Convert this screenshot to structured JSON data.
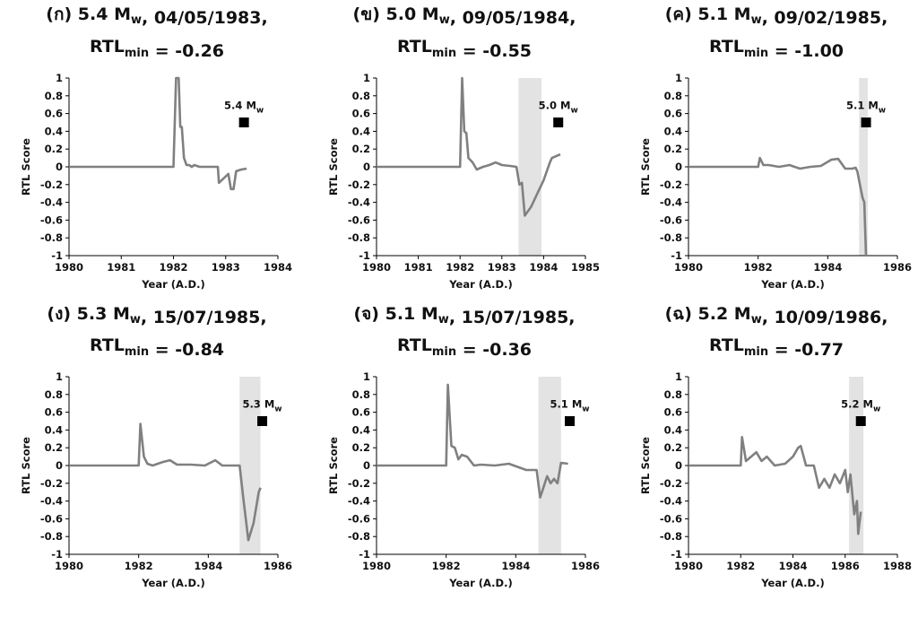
{
  "chart_data": [
    {
      "type": "line",
      "title_line1": "(ก) 5.4 Mw, 04/05/1983,",
      "title_line2": "RTLmin = -0.26",
      "xlabel": "Year (A.D.)",
      "ylabel": "RTL Score",
      "xlim": [
        1980,
        1984
      ],
      "xticks": [
        1980,
        1981,
        1982,
        1983,
        1984
      ],
      "ylim": [
        -1,
        1
      ],
      "yticks": [
        -1,
        -0.8,
        -0.6,
        -0.4,
        -0.2,
        0,
        0.2,
        0.4,
        0.6,
        0.8,
        1
      ],
      "ytick_labels": [
        "-1",
        "-0.8",
        "-0.6",
        "-0.4",
        "-0.2",
        "0",
        "0.2",
        "0.4",
        "0.6",
        "0.8",
        "1"
      ],
      "series": [
        {
          "x": [
            1980,
            1982.0,
            1982.05,
            1982.1,
            1982.13,
            1982.16,
            1982.2,
            1982.25,
            1982.3,
            1982.35,
            1982.4,
            1982.5,
            1982.6,
            1982.85,
            1982.87,
            1983.05,
            1983.1,
            1983.15,
            1983.2,
            1983.3,
            1983.4
          ],
          "y": [
            0,
            0,
            1,
            1,
            0.45,
            0.45,
            0.1,
            0.02,
            0.02,
            0.0,
            0.02,
            0,
            0.0,
            0.0,
            -0.18,
            -0.08,
            -0.25,
            -0.25,
            -0.05,
            -0.03,
            -0.02
          ]
        }
      ],
      "event": {
        "x": 1983.35,
        "y": 0.5,
        "label": "5.4 Mw"
      },
      "shade": null
    },
    {
      "type": "line",
      "title_line1": "(ข) 5.0 Mw, 09/05/1984,",
      "title_line2": "RTLmin = -0.55",
      "xlabel": "Year (A.D.)",
      "ylabel": "RTL Score",
      "xlim": [
        1980,
        1985
      ],
      "xticks": [
        1980,
        1981,
        1982,
        1983,
        1984,
        1985
      ],
      "ylim": [
        -1,
        1
      ],
      "yticks": [
        -1,
        -0.8,
        -0.6,
        -0.4,
        -0.2,
        0,
        0.2,
        0.4,
        0.6,
        0.8,
        1
      ],
      "ytick_labels": [
        "-1",
        "-0.8",
        "-0.6",
        "-0.4",
        "-0.2",
        "0",
        "0.2",
        "0.4",
        "0.6",
        "0.8",
        "1"
      ],
      "series": [
        {
          "x": [
            1980,
            1982.0,
            1982.05,
            1982.1,
            1982.15,
            1982.2,
            1982.3,
            1982.4,
            1982.55,
            1982.7,
            1982.85,
            1983.0,
            1983.2,
            1983.35,
            1983.42,
            1983.48,
            1983.55,
            1983.7,
            1983.85,
            1984.0,
            1984.15,
            1984.2,
            1984.3,
            1984.4
          ],
          "y": [
            0,
            0,
            1,
            0.4,
            0.38,
            0.1,
            0.05,
            -0.03,
            0.0,
            0.02,
            0.05,
            0.02,
            0.01,
            0.0,
            -0.2,
            -0.18,
            -0.55,
            -0.45,
            -0.3,
            -0.15,
            0.05,
            0.1,
            0.12,
            0.14
          ]
        }
      ],
      "event": {
        "x": 1984.35,
        "y": 0.5,
        "label": "5.0 Mw"
      },
      "shade": [
        1983.4,
        1983.95
      ]
    },
    {
      "type": "line",
      "title_line1": "(ค) 5.1 Mw, 09/02/1985,",
      "title_line2": "RTLmin = -1.00",
      "xlabel": "Year (A.D.)",
      "ylabel": "RTL Score",
      "xlim": [
        1980,
        1986
      ],
      "xticks": [
        1980,
        1982,
        1984,
        1986
      ],
      "ylim": [
        -1,
        1
      ],
      "yticks": [
        -1,
        -0.8,
        -0.6,
        -0.4,
        -0.2,
        0,
        0.2,
        0.4,
        0.6,
        0.8,
        1
      ],
      "ytick_labels": [
        "-1",
        "-0.8",
        "-0.6",
        "-0.4",
        "-0.2",
        "0",
        "0.2",
        "0.4",
        "0.6",
        "0.8",
        "1"
      ],
      "series": [
        {
          "x": [
            1980,
            1982.0,
            1982.05,
            1982.15,
            1982.3,
            1982.6,
            1982.9,
            1983.2,
            1983.5,
            1983.8,
            1984.1,
            1984.3,
            1984.5,
            1984.7,
            1984.8,
            1984.85,
            1984.95,
            1985.0,
            1985.05,
            1985.1
          ],
          "y": [
            0,
            0,
            0.1,
            0.02,
            0.02,
            0.0,
            0.02,
            -0.02,
            0.0,
            0.01,
            0.08,
            0.09,
            -0.02,
            -0.02,
            -0.01,
            -0.05,
            -0.25,
            -0.35,
            -0.4,
            -1.0
          ]
        }
      ],
      "event": {
        "x": 1985.1,
        "y": 0.5,
        "label": "5.1 Mw"
      },
      "shade": [
        1984.9,
        1985.15
      ]
    },
    {
      "type": "line",
      "title_line1": "(ง) 5.3 Mw, 15/07/1985,",
      "title_line2": "RTLmin = -0.84",
      "xlabel": "Year (A.D.)",
      "ylabel": "RTL Score",
      "xlim": [
        1980,
        1986
      ],
      "xticks": [
        1980,
        1982,
        1984,
        1986
      ],
      "ylim": [
        -1,
        1
      ],
      "yticks": [
        -1,
        -0.8,
        -0.6,
        -0.4,
        -0.2,
        0,
        0.2,
        0.4,
        0.6,
        0.8,
        1
      ],
      "ytick_labels": [
        "-1",
        "-0.8",
        "-0.6",
        "-0.4",
        "-0.2",
        "0",
        "0.2",
        "0.4",
        "0.6",
        "0.8",
        "1"
      ],
      "series": [
        {
          "x": [
            1980,
            1982.0,
            1982.05,
            1982.15,
            1982.25,
            1982.4,
            1982.7,
            1982.9,
            1983.1,
            1983.5,
            1983.9,
            1984.2,
            1984.4,
            1984.9,
            1985.0,
            1985.15,
            1985.3,
            1985.45,
            1985.5
          ],
          "y": [
            0,
            0,
            0.47,
            0.1,
            0.02,
            0.0,
            0.04,
            0.06,
            0.01,
            0.01,
            0.0,
            0.06,
            0.0,
            0.0,
            -0.35,
            -0.84,
            -0.65,
            -0.3,
            -0.25
          ]
        }
      ],
      "event": {
        "x": 1985.55,
        "y": 0.5,
        "label": "5.3 Mw"
      },
      "shade": [
        1984.9,
        1985.5
      ]
    },
    {
      "type": "line",
      "title_line1": "(จ) 5.1 Mw, 15/07/1985,",
      "title_line2": "RTLmin = -0.36",
      "xlabel": "Year (A.D.)",
      "ylabel": "RTL Score",
      "xlim": [
        1980,
        1986
      ],
      "xticks": [
        1980,
        1982,
        1984,
        1986
      ],
      "ylim": [
        -1,
        1
      ],
      "yticks": [
        -1,
        -0.8,
        -0.6,
        -0.4,
        -0.2,
        0,
        0.2,
        0.4,
        0.6,
        0.8,
        1
      ],
      "ytick_labels": [
        "-1",
        "-0.8",
        "-0.6",
        "-0.4",
        "-0.2",
        "0",
        "0.2",
        "0.4",
        "0.6",
        "0.8",
        "1"
      ],
      "series": [
        {
          "x": [
            1980,
            1982.0,
            1982.05,
            1982.15,
            1982.25,
            1982.35,
            1982.45,
            1982.6,
            1982.8,
            1983.0,
            1983.4,
            1983.8,
            1984.3,
            1984.6,
            1984.7,
            1984.75,
            1984.9,
            1985.0,
            1985.1,
            1985.2,
            1985.3,
            1985.5
          ],
          "y": [
            0,
            0,
            0.91,
            0.22,
            0.2,
            0.07,
            0.12,
            0.1,
            0.0,
            0.01,
            0.0,
            0.02,
            -0.05,
            -0.05,
            -0.36,
            -0.3,
            -0.12,
            -0.2,
            -0.15,
            -0.2,
            0.03,
            0.02
          ]
        }
      ],
      "event": {
        "x": 1985.55,
        "y": 0.5,
        "label": "5.1 Mw"
      },
      "shade": [
        1984.65,
        1985.3
      ]
    },
    {
      "type": "line",
      "title_line1": "(ฉ) 5.2 Mw, 10/09/1986,",
      "title_line2": "RTLmin = -0.77",
      "xlabel": "Year (A.D.)",
      "ylabel": "RTL Score",
      "xlim": [
        1980,
        1988
      ],
      "xticks": [
        1980,
        1982,
        1984,
        1986,
        1988
      ],
      "ylim": [
        -1,
        1
      ],
      "yticks": [
        -1,
        -0.8,
        -0.6,
        -0.4,
        -0.2,
        0,
        0.2,
        0.4,
        0.6,
        0.8,
        1
      ],
      "ytick_labels": [
        "-1",
        "-0.8",
        "-0.6",
        "-0.4",
        "-0.2",
        "0",
        "0.2",
        "0.4",
        "0.6",
        "0.8",
        "1"
      ],
      "series": [
        {
          "x": [
            1980,
            1982.0,
            1982.05,
            1982.2,
            1982.4,
            1982.6,
            1982.8,
            1983.0,
            1983.3,
            1983.7,
            1984.0,
            1984.2,
            1984.3,
            1984.5,
            1984.8,
            1985.0,
            1985.2,
            1985.4,
            1985.6,
            1985.8,
            1986.0,
            1986.1,
            1986.2,
            1986.35,
            1986.45,
            1986.5,
            1986.6
          ],
          "y": [
            0,
            0,
            0.32,
            0.05,
            0.1,
            0.15,
            0.05,
            0.1,
            0.0,
            0.02,
            0.1,
            0.2,
            0.22,
            0.0,
            0.0,
            -0.25,
            -0.15,
            -0.25,
            -0.1,
            -0.2,
            -0.05,
            -0.3,
            -0.1,
            -0.55,
            -0.4,
            -0.77,
            -0.52
          ]
        }
      ],
      "event": {
        "x": 1986.6,
        "y": 0.5,
        "label": "5.2 Mw"
      },
      "shade": [
        1986.15,
        1986.7
      ]
    }
  ],
  "colors": {
    "line": "#808080",
    "shade": "#e3e3e3",
    "axis": "#000000",
    "marker": "#000000"
  }
}
